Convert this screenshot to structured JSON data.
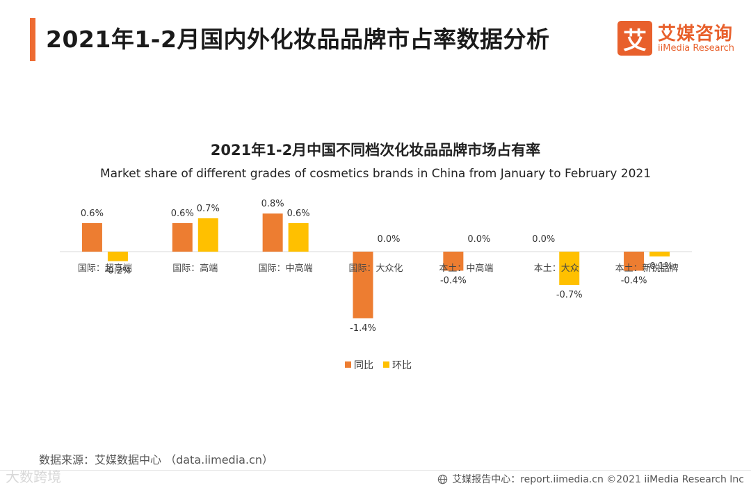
{
  "header": {
    "title": "2021年1-2月国内外化妆品品牌市占率数据分析",
    "logo_mark": "艾",
    "logo_name": "艾媒咨询",
    "logo_sub": "iiMedia Research"
  },
  "colors": {
    "accent": "#ee6b32",
    "yoy": "#ed7d31",
    "mom": "#ffc000",
    "axis": "#d9d9d9"
  },
  "chart_data": {
    "type": "bar",
    "title": "2021年1-2月中国不同档次化妆品品牌市场占有率",
    "subtitle": "Market share of different grades of cosmetics brands in China from January to February 2021",
    "categories": [
      "国际：超高端",
      "国际：高端",
      "国际：中高端",
      "国际：大众化",
      "本土：中高端",
      "本土：大众",
      "本土：新锐品牌"
    ],
    "series": [
      {
        "name": "同比",
        "values": [
          0.6,
          0.6,
          0.8,
          -1.4,
          -0.4,
          0.0,
          -0.4
        ],
        "labels": [
          "0.6%",
          "0.6%",
          "0.8%",
          "-1.4%",
          "-0.4%",
          "0.0%",
          "-0.4%"
        ]
      },
      {
        "name": "环比",
        "values": [
          -0.2,
          0.7,
          0.6,
          0.0,
          0.0,
          -0.7,
          -0.1
        ],
        "labels": [
          "-0.2%",
          "0.7%",
          "0.6%",
          "0.0%",
          "0.0%",
          "-0.7%",
          "-0.1%"
        ]
      }
    ],
    "xlabel": "",
    "ylabel": "",
    "ylim": [
      -1.4,
      0.8
    ],
    "grid": false,
    "legend": "bottom-center"
  },
  "footer": {
    "source": "数据来源：艾媒数据中心 （data.iimedia.cn）",
    "watermark": "大数跨境",
    "copyright": "艾媒报告中心：report.iimedia.cn  ©2021  iiMedia Research  Inc"
  }
}
